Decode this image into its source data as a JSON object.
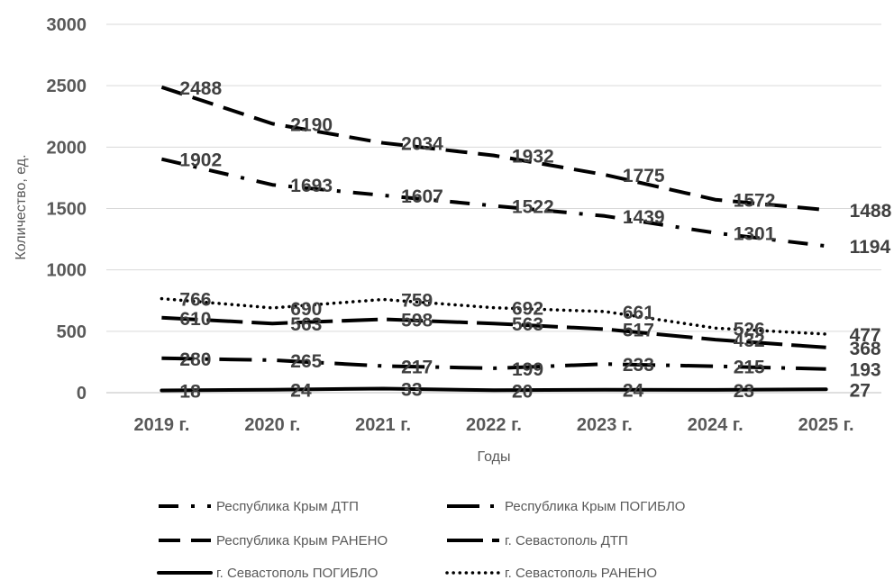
{
  "chart_data": {
    "type": "line",
    "categories": [
      "2019 г.",
      "2020 г.",
      "2021 г.",
      "2022 г.",
      "2023 г.",
      "2024 г.",
      "2025 г."
    ],
    "ylabel": "Количество, ед.",
    "xlabel": "Годы",
    "ylim": [
      0,
      3000
    ],
    "yticks": [
      "0",
      "500",
      "1000",
      "1500",
      "2000",
      "2500",
      "3000"
    ],
    "grid": true,
    "legend_position": "bottom",
    "series": [
      {
        "name": "Республика Крым ДТП",
        "style": "dash-dot",
        "values": [
          1902,
          1693,
          1607,
          1522,
          1439,
          1301,
          1194
        ]
      },
      {
        "name": "Республика Крым ПОГИБЛО",
        "style": "long-dash-dot",
        "values": [
          280,
          265,
          217,
          199,
          233,
          215,
          193
        ]
      },
      {
        "name": "Республика Крым РАНЕНО",
        "style": "dash",
        "values": [
          2488,
          2190,
          2034,
          1932,
          1775,
          1572,
          1488
        ]
      },
      {
        "name": "г. Севастополь ДТП",
        "style": "long-dash",
        "values": [
          610,
          563,
          598,
          563,
          517,
          432,
          368
        ]
      },
      {
        "name": "г. Севастополь ПОГИБЛО",
        "style": "solid",
        "values": [
          18,
          24,
          33,
          20,
          24,
          23,
          27
        ]
      },
      {
        "name": "г. Севастополь РАНЕНО",
        "style": "dot",
        "values": [
          766,
          690,
          759,
          692,
          661,
          526,
          477
        ]
      }
    ],
    "colors": {
      "line": "#000000",
      "grid": "#d9d9d9",
      "text": "#595959",
      "label": "#404040"
    }
  }
}
